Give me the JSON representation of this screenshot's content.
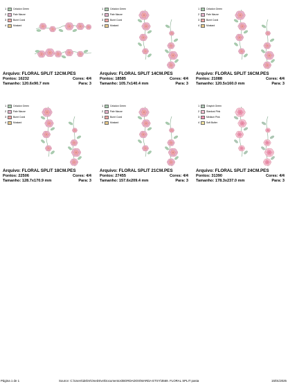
{
  "colors": {
    "Celadon Green": "#a8ccae",
    "Pale Mauve": "#e6b3cc",
    "Burnt Coral": "#f1a6a3",
    "Mustard": "#e8c98a",
    "Stardust Pink": "#f4c3d4",
    "Medium Pink": "#ef8fb0",
    "Soft Butter": "#f6e7a3",
    "Grayish Green": "#aec7b5"
  },
  "designs": [
    {
      "file_label": "Arquivo:",
      "file": "FLORAL SPLIT 12CM.PES",
      "points_label": "Pontos:",
      "points": "16232",
      "colors_label": "Cores:",
      "colors": "4/4",
      "size_label": "Tamanho:",
      "size": "120.6x90.7 mm",
      "stops_label": "Para:",
      "stops": "3",
      "legend": [
        {
          "n": "1",
          "name": "Celadon Green",
          "color": "Celadon Green"
        },
        {
          "n": "2",
          "name": "Pale Mauve",
          "color": "Pale Mauve"
        },
        {
          "n": "3",
          "name": "Burnt Coral",
          "color": "Burnt Coral"
        },
        {
          "n": "4",
          "name": "Mustard",
          "color": "Mustard"
        }
      ],
      "art": "horizontal"
    },
    {
      "file_label": "Arquivo:",
      "file": "FLORAL SPLIT 14CM.PES",
      "points_label": "Pontos:",
      "points": "18585",
      "colors_label": "Cores:",
      "colors": "4/4",
      "size_label": "Tamanho:",
      "size": "105.7x140.4 mm",
      "stops_label": "Para:",
      "stops": "3",
      "legend": [
        {
          "n": "1",
          "name": "Celadon Green",
          "color": "Celadon Green"
        },
        {
          "n": "2",
          "name": "Pale Mauve",
          "color": "Pale Mauve"
        },
        {
          "n": "3",
          "name": "Burnt Coral",
          "color": "Burnt Coral"
        },
        {
          "n": "4",
          "name": "Mustard",
          "color": "Mustard"
        }
      ],
      "art": "vertical"
    },
    {
      "file_label": "Arquivo:",
      "file": "FLORAL SPLIT 16CM.PES",
      "points_label": "Pontos:",
      "points": "21088",
      "colors_label": "Cores:",
      "colors": "4/4",
      "size_label": "Tamanho:",
      "size": "120.5x160.0 mm",
      "stops_label": "Para:",
      "stops": "3",
      "legend": [
        {
          "n": "1",
          "name": "Celadon Green",
          "color": "Celadon Green"
        },
        {
          "n": "2",
          "name": "Pale Mauve",
          "color": "Pale Mauve"
        },
        {
          "n": "3",
          "name": "Burnt Coral",
          "color": "Burnt Coral"
        },
        {
          "n": "4",
          "name": "Mustard",
          "color": "Mustard"
        }
      ],
      "art": "vertical"
    },
    {
      "file_label": "Arquivo:",
      "file": "FLORAL SPLIT 18CM.PES",
      "points_label": "Pontos:",
      "points": "22506",
      "colors_label": "Cores:",
      "colors": "4/4",
      "size_label": "Tamanho:",
      "size": "128.7x170.9 mm",
      "stops_label": "Para:",
      "stops": "3",
      "legend": [
        {
          "n": "1",
          "name": "Celadon Green",
          "color": "Celadon Green"
        },
        {
          "n": "2",
          "name": "Pale Mauve",
          "color": "Pale Mauve"
        },
        {
          "n": "3",
          "name": "Burnt Coral",
          "color": "Burnt Coral"
        },
        {
          "n": "4",
          "name": "Mustard",
          "color": "Mustard"
        }
      ],
      "art": "vertical"
    },
    {
      "file_label": "Arquivo:",
      "file": "FLORAL SPLIT 21CM.PES",
      "points_label": "Pontos:",
      "points": "27455",
      "colors_label": "Cores:",
      "colors": "4/4",
      "size_label": "Tamanho:",
      "size": "157.6x209.4 mm",
      "stops_label": "Para:",
      "stops": "3",
      "legend": [
        {
          "n": "1",
          "name": "Celadon Green",
          "color": "Celadon Green"
        },
        {
          "n": "2",
          "name": "Pale Mauve",
          "color": "Pale Mauve"
        },
        {
          "n": "3",
          "name": "Burnt Coral",
          "color": "Burnt Coral"
        },
        {
          "n": "4",
          "name": "Mustard",
          "color": "Mustard"
        }
      ],
      "art": "vertical"
    },
    {
      "file_label": "Arquivo:",
      "file": "FLORAL SPLIT 24CM.PES",
      "points_label": "Pontos:",
      "points": "31390",
      "colors_label": "Cores:",
      "colors": "4/4",
      "size_label": "Tamanho:",
      "size": "178.3x237.0 mm",
      "stops_label": "Para:",
      "stops": "3",
      "legend": [
        {
          "n": "1",
          "name": "Grayish Green",
          "color": "Grayish Green"
        },
        {
          "n": "2",
          "name": "Stardust Pink",
          "color": "Stardust Pink"
        },
        {
          "n": "3",
          "name": "Medium Pink",
          "color": "Medium Pink"
        },
        {
          "n": "4",
          "name": "Soft Butter",
          "color": "Soft Butter"
        }
      ],
      "art": "vertical"
    }
  ],
  "footer": {
    "page": "Página 1 de 1",
    "source": "Source:  C:\\Users\\delim\\OneDrive\\Documentos\\BORDADOS\\MARDA ETSY\\3569. FLORAL SPLIT pasta",
    "date": "15/01/2025"
  }
}
